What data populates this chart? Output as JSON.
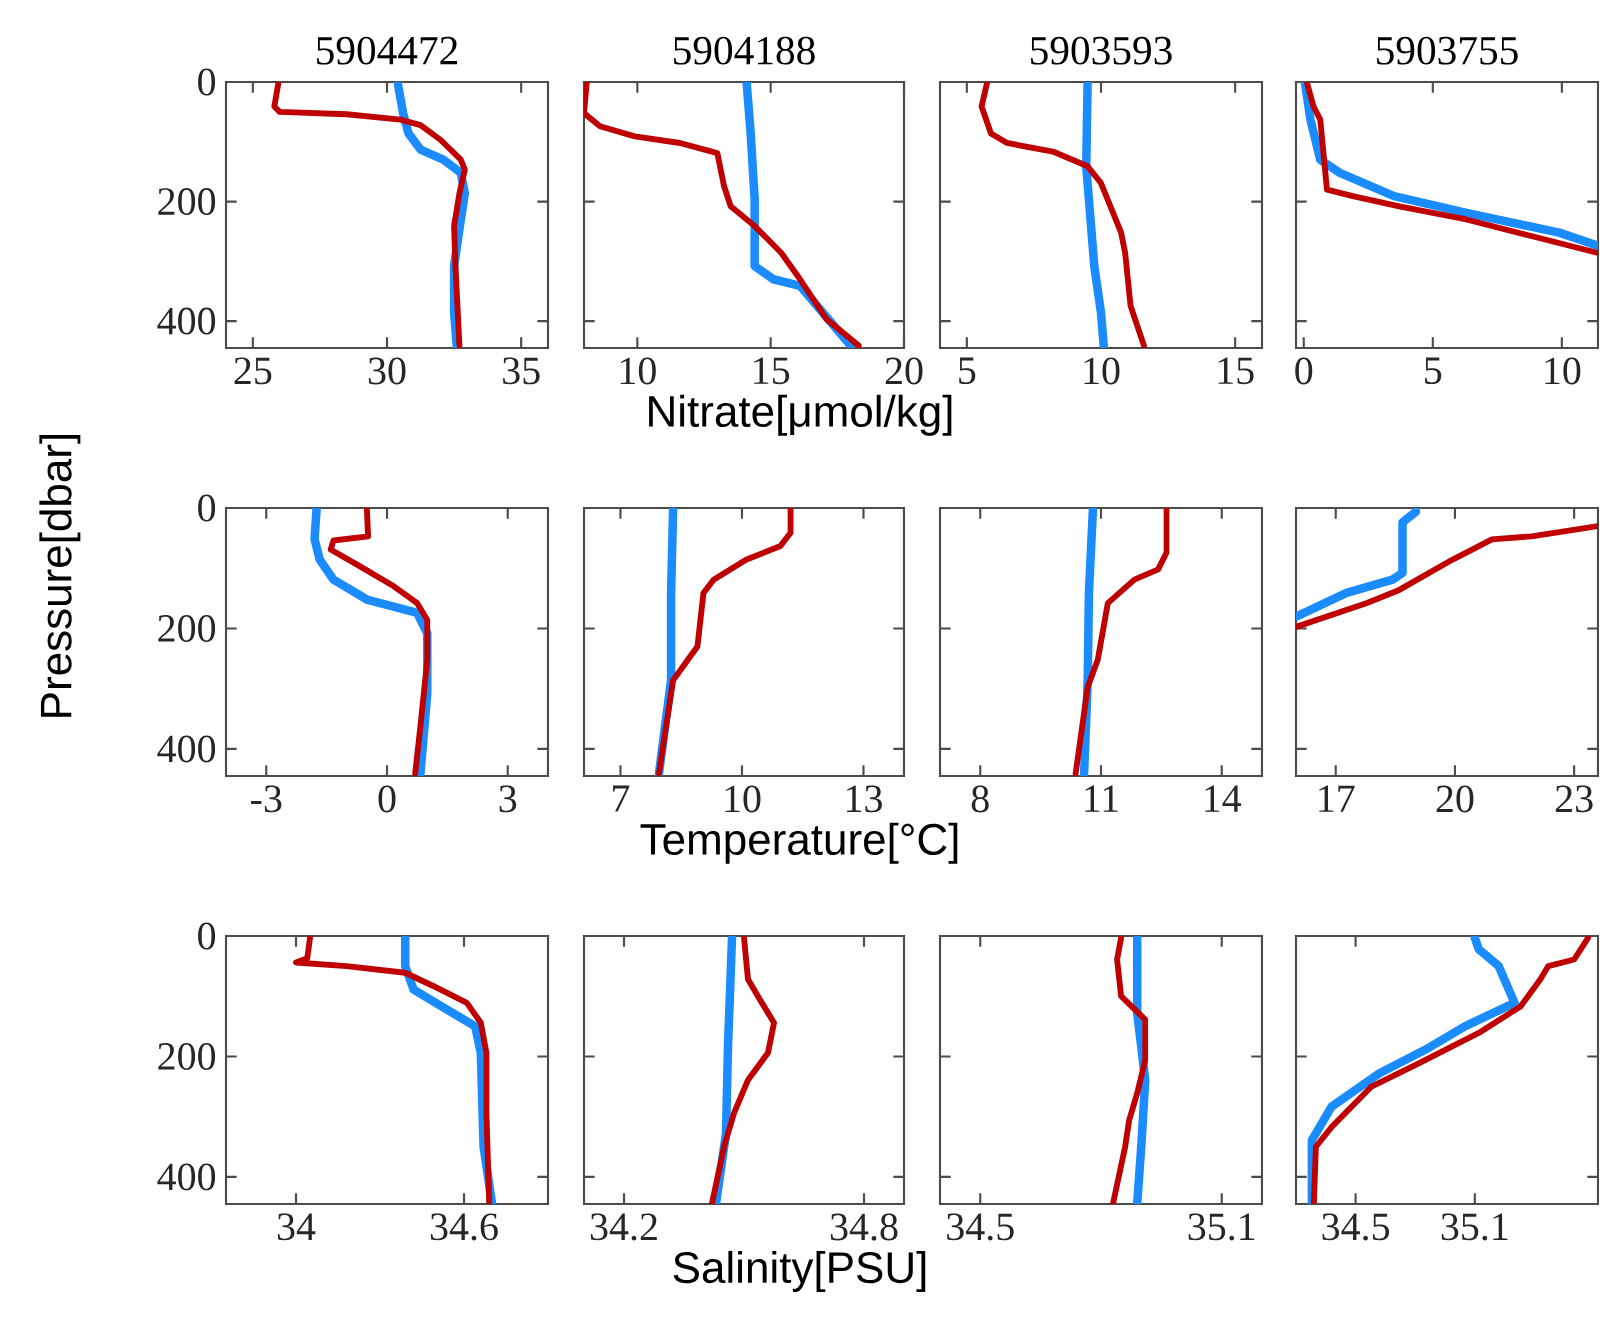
{
  "chart_data": [
    {
      "type": "line",
      "title": "5904472",
      "xlim": [
        24,
        36
      ],
      "ylim": [
        445,
        0
      ],
      "xticks": [
        25,
        30,
        35
      ],
      "yticks": [
        0,
        200,
        400
      ],
      "series": [
        {
          "color": "#1a8cff",
          "x": [
            30.4,
            30.6,
            30.8,
            31.25,
            32.1,
            32.75,
            32.9,
            32.75,
            32.5,
            32.5,
            32.6
          ],
          "values": [
            2,
            52,
            86,
            113,
            130,
            152,
            186,
            230,
            308,
            385,
            441
          ]
        },
        {
          "color": "#c00000",
          "x": [
            25.95,
            25.8,
            26.0,
            28.5,
            30.5,
            31.25,
            32.0,
            32.75,
            32.9,
            32.7,
            32.5,
            32.55,
            32.7
          ],
          "values": [
            2,
            41,
            50,
            54,
            63,
            72,
            97,
            130,
            147,
            186,
            241,
            308,
            441
          ]
        }
      ]
    },
    {
      "type": "line",
      "title": "5904188",
      "xlabel": "Nitrate[μmol/kg]",
      "xlim": [
        8,
        20
      ],
      "ylim": [
        445,
        0
      ],
      "xticks": [
        10,
        15,
        20
      ],
      "yticks": [
        0,
        200,
        400
      ],
      "tick_labels": "x",
      "series": [
        {
          "color": "#1a8cff",
          "x": [
            14.1,
            14.25,
            14.4,
            14.4,
            15.1,
            16.1,
            18.0
          ],
          "values": [
            2,
            86,
            197,
            308,
            330,
            341,
            441
          ]
        },
        {
          "color": "#c00000",
          "x": [
            8.1,
            8.0,
            8.6,
            9.9,
            11.6,
            13.0,
            13.25,
            13.5,
            14.4,
            15.4,
            16.1,
            17.1,
            18.3
          ],
          "values": [
            2,
            52,
            74,
            91,
            102,
            119,
            174,
            208,
            241,
            286,
            330,
            397,
            441
          ]
        }
      ]
    },
    {
      "type": "line",
      "title": "5903593",
      "xlim": [
        4,
        16
      ],
      "ylim": [
        445,
        0
      ],
      "xticks": [
        5,
        10,
        15
      ],
      "yticks": [
        0,
        200,
        400
      ],
      "tick_labels": "x",
      "series": [
        {
          "color": "#1a8cff",
          "x": [
            9.5,
            9.45,
            9.55,
            9.75,
            10.0,
            10.1
          ],
          "values": [
            2,
            141,
            197,
            308,
            386,
            441
          ]
        },
        {
          "color": "#c00000",
          "x": [
            5.75,
            5.55,
            5.9,
            6.5,
            8.25,
            9.5,
            10.0,
            10.25,
            10.75,
            10.9,
            11.0,
            11.1,
            11.6
          ],
          "values": [
            2,
            41,
            86,
            102,
            117,
            141,
            169,
            197,
            252,
            286,
            330,
            374,
            441
          ]
        }
      ]
    },
    {
      "type": "line",
      "title": "5903755",
      "xlim": [
        -0.3,
        11.4
      ],
      "ylim": [
        445,
        0
      ],
      "xticks": [
        0,
        5,
        10
      ],
      "yticks": [
        0,
        200,
        400
      ],
      "tick_labels": "x",
      "series": [
        {
          "color": "#1a8cff",
          "x": [
            0.05,
            0.26,
            0.64,
            1.4,
            3.5,
            6.3,
            9.9,
            11.4
          ],
          "values": [
            2,
            63,
            130,
            152,
            191,
            219,
            252,
            274
          ]
        },
        {
          "color": "#c00000",
          "x": [
            0.13,
            0.38,
            0.64,
            0.9,
            1.9,
            3.7,
            6.3,
            8.85,
            11.4
          ],
          "values": [
            2,
            41,
            63,
            180,
            191,
            208,
            230,
            258,
            286
          ]
        }
      ]
    },
    {
      "type": "line",
      "ylabel": "Pressure[dbar]",
      "xlim": [
        -4,
        4
      ],
      "ylim": [
        445,
        0
      ],
      "xticks": [
        -3,
        0,
        3
      ],
      "yticks": [
        0,
        200,
        400
      ],
      "series": [
        {
          "color": "#1a8cff",
          "x": [
            -1.75,
            -1.8,
            -1.67,
            -1.33,
            -0.5,
            0.75,
            1.0,
            1.0,
            0.83
          ],
          "values": [
            2,
            52,
            86,
            119,
            152,
            174,
            208,
            308,
            441
          ]
        },
        {
          "color": "#c00000",
          "x": [
            -0.5,
            -0.47,
            -1.33,
            -1.4,
            -0.67,
            0.17,
            0.75,
            1.0,
            1.0,
            0.83,
            0.7
          ],
          "values": [
            2,
            47,
            54,
            69,
            97,
            130,
            158,
            186,
            252,
            363,
            441
          ]
        }
      ]
    },
    {
      "type": "line",
      "xlabel": "Temperature[°C]",
      "xlim": [
        6.1,
        14
      ],
      "ylim": [
        445,
        0
      ],
      "xticks": [
        7,
        10,
        13
      ],
      "yticks": [
        0,
        200,
        400
      ],
      "tick_labels": "x",
      "series": [
        {
          "color": "#1a8cff",
          "x": [
            8.3,
            8.25,
            8.25,
            8.1,
            7.95
          ],
          "values": [
            2,
            141,
            286,
            363,
            441
          ]
        },
        {
          "color": "#c00000",
          "x": [
            11.2,
            11.2,
            10.95,
            10.1,
            9.3,
            9.05,
            8.9,
            8.3,
            7.95
          ],
          "values": [
            2,
            41,
            63,
            86,
            119,
            141,
            230,
            286,
            441
          ]
        }
      ]
    },
    {
      "type": "line",
      "xlim": [
        7,
        15
      ],
      "ylim": [
        445,
        0
      ],
      "xticks": [
        8,
        11,
        14
      ],
      "yticks": [
        0,
        200,
        400
      ],
      "tick_labels": "x",
      "series": [
        {
          "color": "#1a8cff",
          "x": [
            10.8,
            10.7,
            10.67,
            10.58
          ],
          "values": [
            2,
            141,
            286,
            441
          ]
        },
        {
          "color": "#c00000",
          "x": [
            12.63,
            12.63,
            12.42,
            11.83,
            11.17,
            10.92,
            10.67,
            10.37
          ],
          "values": [
            2,
            74,
            102,
            119,
            158,
            252,
            297,
            441
          ]
        }
      ]
    },
    {
      "type": "line",
      "xlim": [
        16,
        23.6
      ],
      "ylim": [
        445,
        0
      ],
      "xticks": [
        17,
        20,
        23
      ],
      "yticks": [
        0,
        200,
        400
      ],
      "tick_labels": "x",
      "series": [
        {
          "color": "#1a8cff",
          "x": [
            19.02,
            18.68,
            18.68,
            18.43,
            17.27,
            16.02
          ],
          "values": [
            6,
            24,
            108,
            119,
            141,
            180
          ]
        },
        {
          "color": "#c00000",
          "x": [
            23.6,
            21.93,
            20.93,
            19.93,
            18.6,
            17.77,
            16.02
          ],
          "values": [
            30,
            47,
            52,
            86,
            136,
            158,
            197
          ]
        }
      ]
    },
    {
      "type": "line",
      "xlim": [
        33.75,
        34.9
      ],
      "ylim": [
        445,
        0
      ],
      "xticks": [
        34,
        34.6
      ],
      "yticks": [
        0,
        200,
        400
      ],
      "series": [
        {
          "color": "#1a8cff",
          "x": [
            34.39,
            34.39,
            34.42,
            34.52,
            34.64,
            34.66,
            34.67,
            34.7
          ],
          "values": [
            3,
            50,
            89,
            117,
            150,
            194,
            350,
            444
          ]
        },
        {
          "color": "#c00000",
          "x": [
            34.05,
            34.04,
            34.0,
            34.18,
            34.39,
            34.49,
            34.61,
            34.66,
            34.68,
            34.68,
            34.69
          ],
          "values": [
            3,
            37,
            44,
            50,
            61,
            83,
            111,
            144,
            194,
            294,
            444
          ]
        }
      ]
    },
    {
      "type": "line",
      "xlabel": "Salinity[PSU]",
      "xlim": [
        34.1,
        34.9
      ],
      "ylim": [
        445,
        0
      ],
      "xticks": [
        34.2,
        34.8
      ],
      "yticks": [
        0,
        200,
        400
      ],
      "tick_labels": "x",
      "series": [
        {
          "color": "#1a8cff",
          "x": [
            34.47,
            34.46,
            34.455,
            34.43
          ],
          "values": [
            3,
            183,
            328,
            444
          ]
        },
        {
          "color": "#c00000",
          "x": [
            34.5,
            34.51,
            34.54,
            34.575,
            34.56,
            34.51,
            34.475,
            34.45,
            34.42
          ],
          "values": [
            3,
            72,
            106,
            144,
            194,
            239,
            294,
            350,
            444
          ]
        }
      ]
    },
    {
      "type": "line",
      "xlim": [
        34.4,
        35.2
      ],
      "ylim": [
        445,
        0
      ],
      "xticks": [
        34.5,
        35.1
      ],
      "yticks": [
        0,
        200,
        400
      ],
      "tick_labels": "x",
      "series": [
        {
          "color": "#1a8cff",
          "x": [
            34.89,
            34.89,
            34.91,
            34.9,
            34.89
          ],
          "values": [
            3,
            128,
            239,
            350,
            444
          ]
        },
        {
          "color": "#c00000",
          "x": [
            34.85,
            34.84,
            34.85,
            34.91,
            34.91,
            34.89,
            34.87,
            34.86,
            34.83
          ],
          "values": [
            3,
            39,
            100,
            139,
            206,
            261,
            306,
            350,
            444
          ]
        }
      ]
    },
    {
      "type": "line",
      "xlim": [
        34.2,
        35.72
      ],
      "ylim": [
        445,
        0
      ],
      "xticks": [
        34.5,
        35.1
      ],
      "yticks": [
        0,
        200,
        400
      ],
      "tick_labels": "x",
      "series": [
        {
          "color": "#1a8cff",
          "x": [
            35.1,
            35.12,
            35.22,
            35.3,
            35.05,
            34.85,
            34.62,
            34.38,
            34.28,
            34.28
          ],
          "values": [
            3,
            22,
            50,
            111,
            150,
            189,
            228,
            283,
            339,
            444
          ]
        },
        {
          "color": "#c00000",
          "x": [
            35.67,
            35.6,
            35.47,
            35.43,
            35.33,
            35.12,
            34.82,
            34.58,
            34.38,
            34.3,
            34.29
          ],
          "values": [
            3,
            39,
            50,
            72,
            117,
            161,
            211,
            250,
            317,
            350,
            444
          ]
        }
      ]
    }
  ]
}
